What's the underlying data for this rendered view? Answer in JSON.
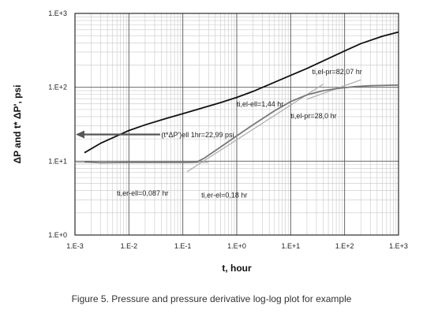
{
  "chart_data": {
    "type": "line",
    "xlabel": "t, hour",
    "ylabel": "ΔP and t* ΔP', psi",
    "x_scale": "log",
    "y_scale": "log",
    "xlim": [
      0.001,
      1000
    ],
    "ylim": [
      1,
      1000
    ],
    "grid": true,
    "x_ticks": [
      "1.E-3",
      "1.E-2",
      "1.E-1",
      "1.E+0",
      "1.E+1",
      "1.E+2",
      "1.E+3"
    ],
    "y_ticks": [
      "1.E+0",
      "1.E+1",
      "1.E+2",
      "1.E+3"
    ],
    "series": [
      {
        "role": "pressure",
        "color": "#111111",
        "x": [
          0.0015,
          0.003,
          0.006,
          0.01,
          0.02,
          0.05,
          0.1,
          0.2,
          0.5,
          1,
          2,
          5,
          10,
          20,
          50,
          100,
          200,
          500,
          1000
        ],
        "y": [
          13,
          17.5,
          22,
          26,
          31,
          38,
          44,
          51,
          62,
          73,
          88,
          117,
          145,
          180,
          245,
          310,
          390,
          490,
          560
        ]
      },
      {
        "role": "pressure-derivative",
        "color": "#777777",
        "x": [
          0.0015,
          0.003,
          0.01,
          0.03,
          0.06,
          0.087,
          0.12,
          0.18,
          0.25,
          0.5,
          1,
          2,
          5,
          10,
          20,
          40,
          80,
          150,
          300,
          1000
        ],
        "y": [
          9.8,
          9.5,
          9.6,
          9.6,
          9.6,
          9.6,
          9.6,
          9.7,
          11,
          15.5,
          22,
          31,
          48,
          64,
          79,
          90,
          97,
          102,
          105,
          107
        ]
      },
      {
        "role": "elliptical-flow-line",
        "color": "#aaaaaa",
        "x": [
          0.12,
          40
        ],
        "y": [
          7.2,
          110
        ]
      },
      {
        "role": "pseudo-radial-flow-line",
        "color": "#aaaaaa",
        "x": [
          20,
          200
        ],
        "y": [
          69,
          126
        ]
      },
      {
        "role": "early-radial-flow-line",
        "color": "#aaaaaa",
        "x": [
          0.001,
          0.3
        ],
        "y": [
          9.6,
          9.6
        ]
      }
    ],
    "annotations": [
      {
        "text": "ti,el-pr=82,07 hr",
        "x": 25,
        "y": 150
      },
      {
        "text": "ti,el-ell=1,44 hr",
        "x": 1.0,
        "y": 55
      },
      {
        "text": "ti,el-pr=28,0 hr",
        "x": 10,
        "y": 38
      },
      {
        "text": "(t*ΔP')ell 1hr=22,99 psi",
        "x": 0.04,
        "y": 21
      },
      {
        "text": "ti,er-ell=0,087 hr",
        "x": 0.006,
        "y": 3.4
      },
      {
        "text": "ti,er-el=0,18 hr",
        "x": 0.22,
        "y": 3.2
      }
    ]
  },
  "caption": "Figure 5. Pressure and pressure derivative log-log plot for example"
}
